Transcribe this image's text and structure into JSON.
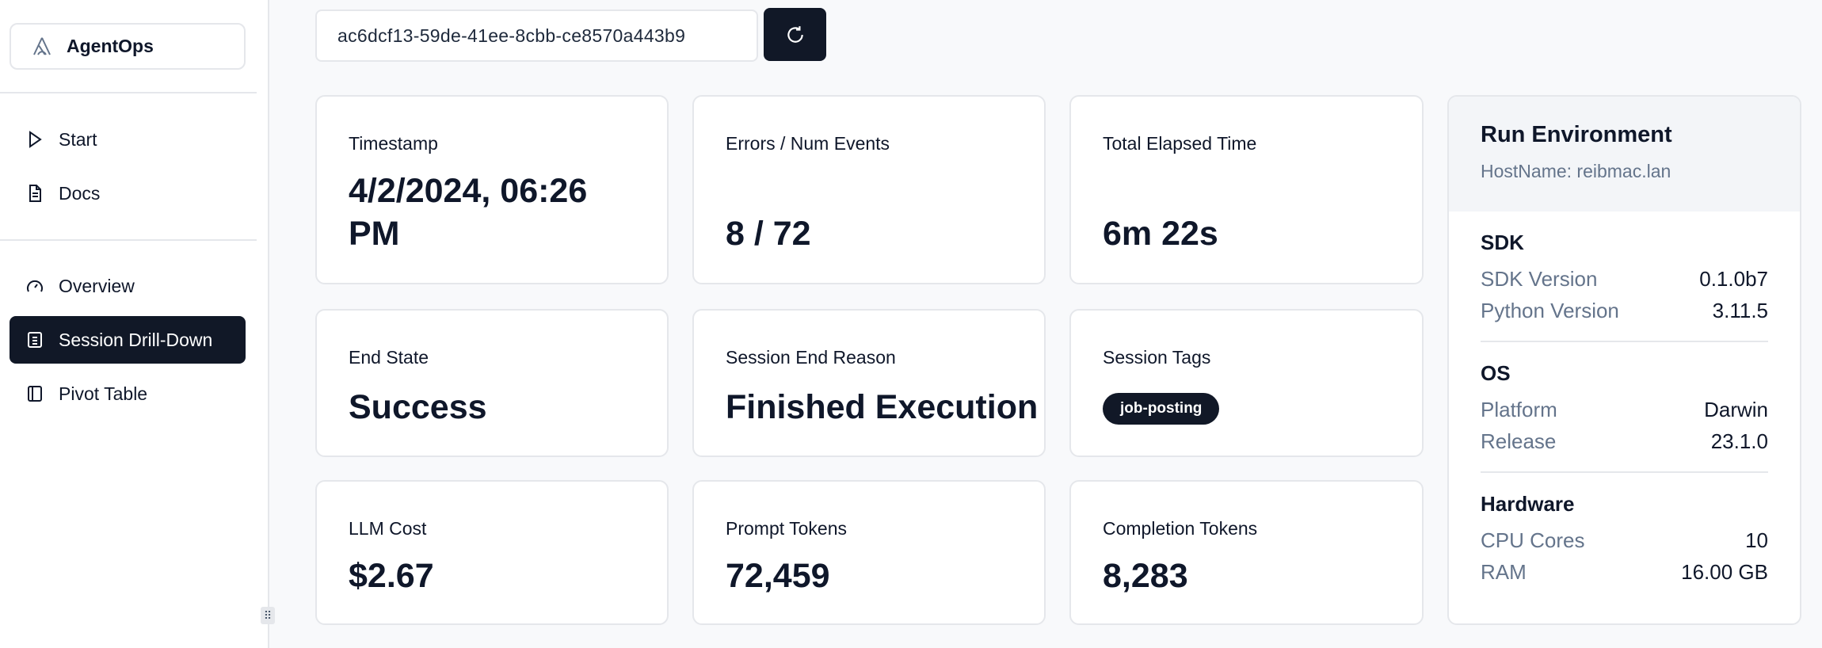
{
  "sidebar": {
    "brand": "AgentOps",
    "items": [
      {
        "label": "Start",
        "icon": "play-icon"
      },
      {
        "label": "Docs",
        "icon": "document-icon"
      },
      {
        "label": "Overview",
        "icon": "gauge-icon"
      },
      {
        "label": "Session Drill-Down",
        "icon": "list-icon",
        "active": true
      },
      {
        "label": "Pivot Table",
        "icon": "panel-icon"
      }
    ]
  },
  "header": {
    "session_id": "ac6dcf13-59de-41ee-8cbb-ce8570a443b9"
  },
  "cards": {
    "timestamp": {
      "label": "Timestamp",
      "line1": "4/2/2024, 06:26",
      "line2": "PM"
    },
    "errors": {
      "label": "Errors / Num Events",
      "value": "8 / 72"
    },
    "elapsed": {
      "label": "Total Elapsed Time",
      "value": "6m 22s"
    },
    "end_state": {
      "label": "End State",
      "value": "Success"
    },
    "end_reason": {
      "label": "Session End Reason",
      "value": "Finished Execution"
    },
    "tags": {
      "label": "Session Tags",
      "tags": [
        "job-posting"
      ]
    },
    "cost": {
      "label": "LLM Cost",
      "value": "$2.67"
    },
    "prompt": {
      "label": "Prompt Tokens",
      "value": "72,459"
    },
    "completion": {
      "label": "Completion Tokens",
      "value": "8,283"
    }
  },
  "env": {
    "title": "Run Environment",
    "host": "HostName: reibmac.lan",
    "sections": [
      {
        "title": "SDK",
        "rows": [
          {
            "k": "SDK Version",
            "v": "0.1.0b7"
          },
          {
            "k": "Python Version",
            "v": "3.11.5"
          }
        ]
      },
      {
        "title": "OS",
        "rows": [
          {
            "k": "Platform",
            "v": "Darwin"
          },
          {
            "k": "Release",
            "v": "23.1.0"
          }
        ]
      },
      {
        "title": "Hardware",
        "rows": [
          {
            "k": "CPU Cores",
            "v": "10"
          },
          {
            "k": "RAM",
            "v": "16.00 GB"
          }
        ]
      }
    ]
  },
  "colors": {
    "accent": "#111827",
    "border": "#e5e7eb",
    "muted": "#64748b"
  }
}
